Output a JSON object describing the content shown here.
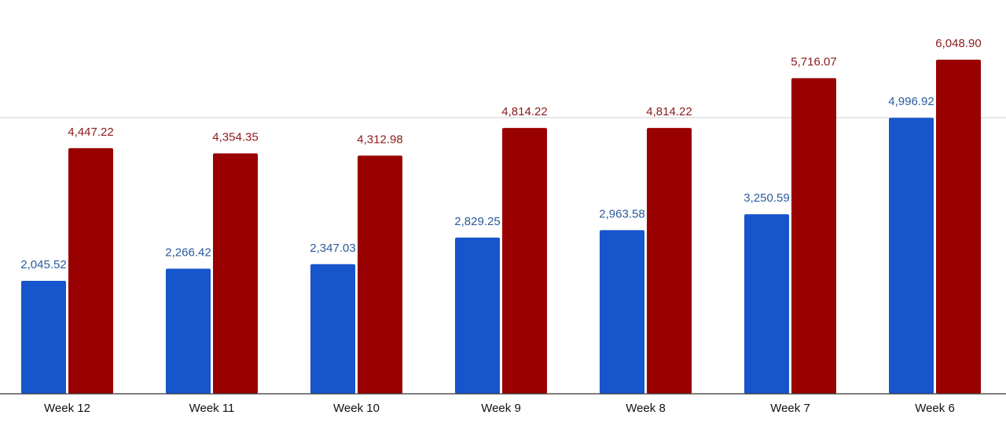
{
  "chart_data": {
    "type": "bar",
    "categories": [
      "Week 12",
      "Week 11",
      "Week 10",
      "Week 9",
      "Week 8",
      "Week 7",
      "Week 6"
    ],
    "series": [
      {
        "values": [
          2045.52,
          2266.42,
          2347.03,
          2829.25,
          2963.58,
          3250.59,
          4996.92
        ],
        "labels": [
          "2,045.52",
          "2,266.42",
          "2,347.03",
          "2,829.25",
          "2,963.58",
          "3,250.59",
          "4,996.92"
        ],
        "color": "#1655cc",
        "label_color": "#2a5a9a"
      },
      {
        "values": [
          4447.22,
          4354.35,
          4312.98,
          4814.22,
          4814.22,
          5716.07,
          6048.9
        ],
        "labels": [
          "4,447.22",
          "4,354.35",
          "4,312.98",
          "4,814.22",
          "4,814.22",
          "5,716.07",
          "6,048.90"
        ],
        "color": "#990000",
        "label_color": "#8b1a1a"
      }
    ],
    "ylim": [
      0,
      7000
    ],
    "gridlines": [
      5000
    ],
    "grid": true,
    "legend": false,
    "title": "",
    "xlabel": "",
    "ylabel": ""
  }
}
